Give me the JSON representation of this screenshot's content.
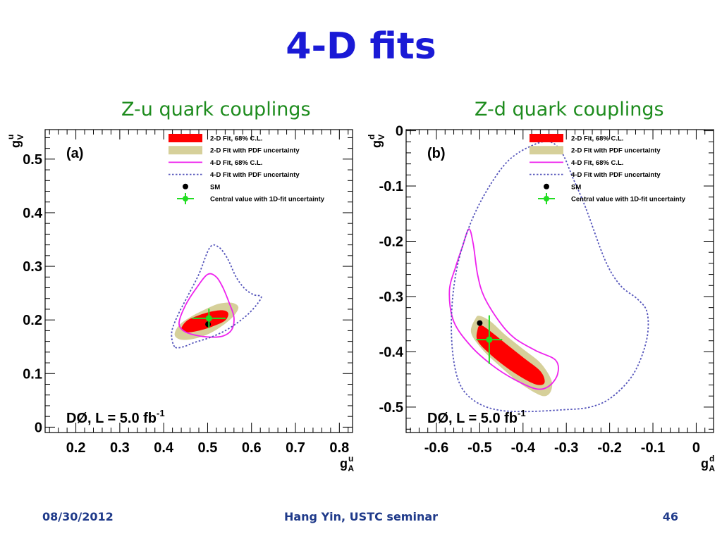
{
  "slide": {
    "title": "4-D fits",
    "footer_date": "08/30/2012",
    "footer_center": "Hang Yin, USTC seminar",
    "footer_page": "46"
  },
  "colors": {
    "title": "#1a1ad6",
    "panel_title": "#1e8c1e",
    "footer": "#1f3a8a",
    "fit2d_68": "#ff0000",
    "fit2d_pdf": "#d6d09a",
    "fit4d_68": "#ee22ee",
    "fit4d_pdf": "#5555bb",
    "sm": "#000000",
    "central": "#22dd22"
  },
  "legend_items": [
    {
      "key": "fit2d_68",
      "label": "2-D Fit, 68% C.L."
    },
    {
      "key": "fit2d_pdf",
      "label": "2-D Fit with PDF uncertainty"
    },
    {
      "key": "fit4d_68",
      "label": "4-D Fit, 68% C.L."
    },
    {
      "key": "fit4d_pdf",
      "label": "4-D Fit with PDF uncertainty"
    },
    {
      "key": "sm",
      "label": "SM"
    },
    {
      "key": "central",
      "label": "Central value with 1D-fit uncertainty"
    }
  ],
  "chart_data": [
    {
      "type": "scatter",
      "title": "Z-u quark couplings",
      "panel_label": "(a)",
      "experiment_label": "DØ, L = 5.0 fb",
      "experiment_sup": "-1",
      "xlabel_main": "g",
      "xlabel_sup": "u",
      "xlabel_sub": "A",
      "ylabel_main": "g",
      "ylabel_sup": "u",
      "ylabel_sub": "V",
      "xlim": [
        0.13,
        0.83
      ],
      "ylim": [
        -0.01,
        0.555
      ],
      "xticks": [
        0.2,
        0.3,
        0.4,
        0.5,
        0.6,
        0.7,
        0.8
      ],
      "xtick_labels": [
        "0.2",
        "0.3",
        "0.4",
        "0.5",
        "0.6",
        "0.7",
        "0.8"
      ],
      "yticks": [
        0,
        0.1,
        0.2,
        0.3,
        0.4,
        0.5
      ],
      "ytick_labels": [
        "0",
        "0.1",
        "0.2",
        "0.3",
        "0.4",
        "0.5"
      ],
      "sm_point": {
        "x": 0.501,
        "y": 0.192
      },
      "central_value": {
        "x": 0.503,
        "y": 0.203,
        "xerr": 0.038,
        "yerr": 0.018
      },
      "regions": {
        "fit4d_pdf": [
          [
            0.425,
            0.15
          ],
          [
            0.418,
            0.175
          ],
          [
            0.43,
            0.205
          ],
          [
            0.455,
            0.245
          ],
          [
            0.48,
            0.285
          ],
          [
            0.505,
            0.335
          ],
          [
            0.525,
            0.336
          ],
          [
            0.545,
            0.315
          ],
          [
            0.565,
            0.28
          ],
          [
            0.585,
            0.258
          ],
          [
            0.605,
            0.247
          ],
          [
            0.622,
            0.244
          ],
          [
            0.615,
            0.232
          ],
          [
            0.595,
            0.213
          ],
          [
            0.57,
            0.196
          ],
          [
            0.54,
            0.18
          ],
          [
            0.505,
            0.167
          ],
          [
            0.47,
            0.158
          ],
          [
            0.445,
            0.15
          ]
        ],
        "fit4d_68": [
          [
            0.435,
            0.195
          ],
          [
            0.45,
            0.228
          ],
          [
            0.475,
            0.26
          ],
          [
            0.5,
            0.285
          ],
          [
            0.52,
            0.28
          ],
          [
            0.535,
            0.26
          ],
          [
            0.55,
            0.23
          ],
          [
            0.56,
            0.205
          ],
          [
            0.555,
            0.182
          ],
          [
            0.535,
            0.17
          ],
          [
            0.505,
            0.168
          ],
          [
            0.47,
            0.172
          ],
          [
            0.445,
            0.18
          ]
        ],
        "fit2d_pdf": [
          [
            0.425,
            0.172
          ],
          [
            0.435,
            0.19
          ],
          [
            0.46,
            0.205
          ],
          [
            0.49,
            0.218
          ],
          [
            0.525,
            0.23
          ],
          [
            0.555,
            0.232
          ],
          [
            0.57,
            0.224
          ],
          [
            0.56,
            0.208
          ],
          [
            0.535,
            0.19
          ],
          [
            0.505,
            0.175
          ],
          [
            0.47,
            0.165
          ],
          [
            0.44,
            0.163
          ]
        ],
        "fit2d_68": [
          [
            0.44,
            0.183
          ],
          [
            0.452,
            0.198
          ],
          [
            0.475,
            0.207
          ],
          [
            0.505,
            0.215
          ],
          [
            0.535,
            0.218
          ],
          [
            0.547,
            0.212
          ],
          [
            0.54,
            0.199
          ],
          [
            0.515,
            0.189
          ],
          [
            0.485,
            0.181
          ],
          [
            0.455,
            0.177
          ]
        ]
      }
    },
    {
      "type": "scatter",
      "title": "Z-d quark couplings",
      "panel_label": "(b)",
      "experiment_label": "DØ, L = 5.0 fb",
      "experiment_sup": "-1",
      "xlabel_main": "g",
      "xlabel_sup": "d",
      "xlabel_sub": "A",
      "ylabel_main": "g",
      "ylabel_sup": "d",
      "ylabel_sub": "V",
      "xlim": [
        -0.67,
        0.04
      ],
      "ylim": [
        -0.546,
        0.002
      ],
      "xticks": [
        -0.6,
        -0.5,
        -0.4,
        -0.3,
        -0.2,
        -0.1,
        0
      ],
      "xtick_labels": [
        "-0.6",
        "-0.5",
        "-0.4",
        "-0.3",
        "-0.2",
        "-0.1",
        "0"
      ],
      "yticks": [
        0,
        -0.1,
        -0.2,
        -0.3,
        -0.4,
        -0.5
      ],
      "ytick_labels": [
        "0",
        "-0.1",
        "-0.2",
        "-0.3",
        "-0.4",
        "-0.5"
      ],
      "sm_point": {
        "x": -0.5,
        "y": -0.348
      },
      "central_value": {
        "x": -0.478,
        "y": -0.378,
        "xerr": 0.03,
        "yerr": 0.044
      },
      "regions": {
        "fit4d_pdf": [
          [
            -0.338,
            -0.02
          ],
          [
            -0.38,
            -0.027
          ],
          [
            -0.435,
            -0.055
          ],
          [
            -0.485,
            -0.11
          ],
          [
            -0.525,
            -0.175
          ],
          [
            -0.553,
            -0.25
          ],
          [
            -0.565,
            -0.33
          ],
          [
            -0.562,
            -0.405
          ],
          [
            -0.545,
            -0.46
          ],
          [
            -0.51,
            -0.49
          ],
          [
            -0.46,
            -0.505
          ],
          [
            -0.395,
            -0.508
          ],
          [
            -0.31,
            -0.505
          ],
          [
            -0.245,
            -0.5
          ],
          [
            -0.195,
            -0.482
          ],
          [
            -0.145,
            -0.44
          ],
          [
            -0.115,
            -0.38
          ],
          [
            -0.113,
            -0.33
          ],
          [
            -0.135,
            -0.305
          ],
          [
            -0.175,
            -0.28
          ],
          [
            -0.21,
            -0.235
          ],
          [
            -0.255,
            -0.14
          ],
          [
            -0.285,
            -0.085
          ],
          [
            -0.31,
            -0.04
          ]
        ],
        "fit4d_68": [
          [
            -0.525,
            -0.178
          ],
          [
            -0.54,
            -0.21
          ],
          [
            -0.555,
            -0.245
          ],
          [
            -0.57,
            -0.29
          ],
          [
            -0.56,
            -0.345
          ],
          [
            -0.52,
            -0.39
          ],
          [
            -0.47,
            -0.425
          ],
          [
            -0.42,
            -0.45
          ],
          [
            -0.37,
            -0.467
          ],
          [
            -0.34,
            -0.462
          ],
          [
            -0.32,
            -0.44
          ],
          [
            -0.325,
            -0.415
          ],
          [
            -0.37,
            -0.398
          ],
          [
            -0.42,
            -0.375
          ],
          [
            -0.455,
            -0.345
          ],
          [
            -0.49,
            -0.3
          ],
          [
            -0.505,
            -0.26
          ],
          [
            -0.515,
            -0.205
          ]
        ],
        "fit2d_pdf": [
          [
            -0.51,
            -0.34
          ],
          [
            -0.52,
            -0.365
          ],
          [
            -0.495,
            -0.395
          ],
          [
            -0.455,
            -0.425
          ],
          [
            -0.41,
            -0.455
          ],
          [
            -0.37,
            -0.475
          ],
          [
            -0.348,
            -0.48
          ],
          [
            -0.335,
            -0.47
          ],
          [
            -0.335,
            -0.45
          ],
          [
            -0.36,
            -0.42
          ],
          [
            -0.4,
            -0.395
          ],
          [
            -0.44,
            -0.37
          ],
          [
            -0.475,
            -0.345
          ],
          [
            -0.5,
            -0.335
          ]
        ],
        "fit2d_68": [
          [
            -0.505,
            -0.36
          ],
          [
            -0.505,
            -0.38
          ],
          [
            -0.475,
            -0.405
          ],
          [
            -0.435,
            -0.43
          ],
          [
            -0.395,
            -0.45
          ],
          [
            -0.365,
            -0.46
          ],
          [
            -0.35,
            -0.455
          ],
          [
            -0.36,
            -0.435
          ],
          [
            -0.4,
            -0.41
          ],
          [
            -0.44,
            -0.385
          ],
          [
            -0.48,
            -0.36
          ],
          [
            -0.498,
            -0.352
          ]
        ]
      }
    }
  ]
}
